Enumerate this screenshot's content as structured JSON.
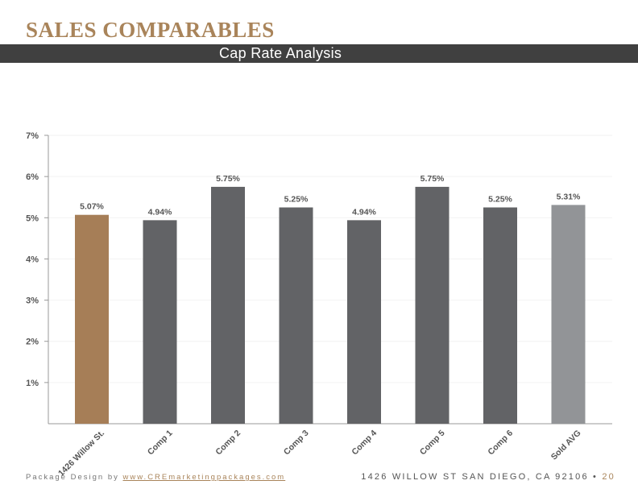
{
  "header": {
    "title": "SALES COMPARABLES",
    "subtitle": "Cap Rate Analysis"
  },
  "colors": {
    "accent": "#a9845a",
    "bar_subject": "#a67e57",
    "bar_comp": "#626366",
    "bar_avg": "#929497",
    "header_bar": "#404040"
  },
  "chart_data": {
    "type": "bar",
    "categories": [
      "1426 Willow St.",
      "Comp 1",
      "Comp 2",
      "Comp 3",
      "Comp 4",
      "Comp 5",
      "Comp 6",
      "Sold AVG"
    ],
    "values": [
      5.07,
      4.94,
      5.75,
      5.25,
      4.94,
      5.75,
      5.25,
      5.31
    ],
    "data_labels": [
      "5.07%",
      "4.94%",
      "5.75%",
      "5.25%",
      "4.94%",
      "5.75%",
      "5.25%",
      "5.31%"
    ],
    "y_ticks": [
      1,
      2,
      3,
      4,
      5,
      6,
      7
    ],
    "y_tick_labels": [
      "1%",
      "2%",
      "3%",
      "4%",
      "5%",
      "6%",
      "7%"
    ],
    "ylim": [
      0,
      7
    ],
    "grid": true,
    "legend": false,
    "title": "",
    "xlabel": "",
    "ylabel": ""
  },
  "footer": {
    "prefix": "Package Design by ",
    "link": "www.CREmarketingpackages.com",
    "address": "1426 WILLOW ST SAN DIEGO, CA 92106",
    "separator": "•",
    "page": "20"
  }
}
